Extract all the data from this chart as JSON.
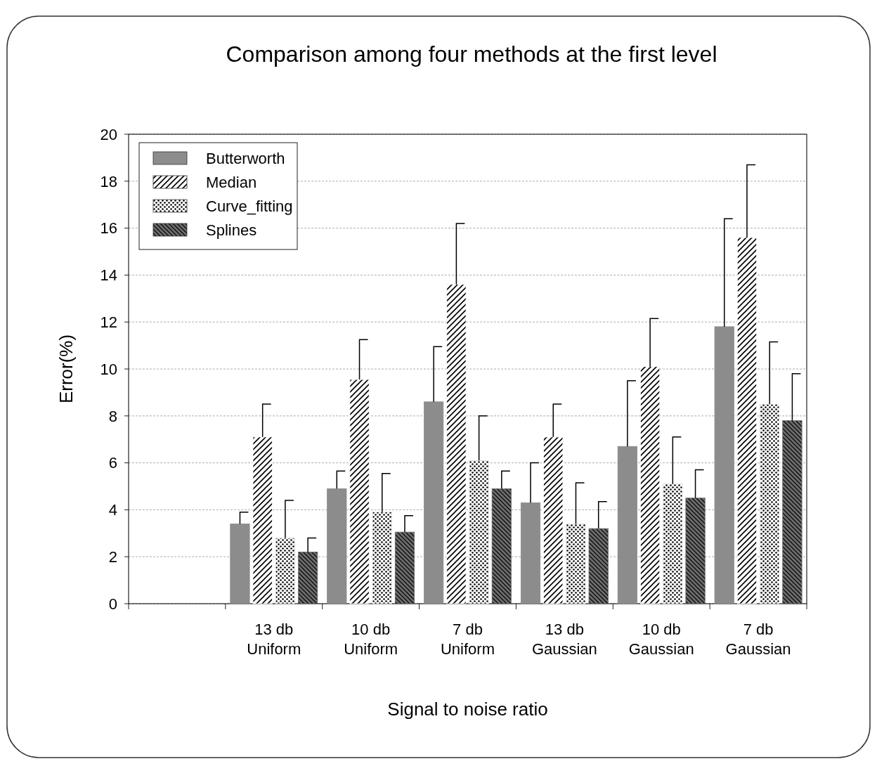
{
  "chart_data": {
    "type": "bar",
    "title": "Comparison among four methods at the first level",
    "xlabel": "Signal to noise ratio",
    "ylabel": "Error(%)",
    "categories": [
      null,
      "13 db Uniform",
      "10 db Uniform",
      "7 db Uniform",
      "13 db Gaussian",
      "10 db Gaussian",
      "7 db Gaussian"
    ],
    "series": [
      {
        "name": "Butterworth",
        "color": "#8c8c8c",
        "values": [
          null,
          3.4,
          4.9,
          8.6,
          4.3,
          6.7,
          11.8
        ],
        "errors": [
          null,
          [
            3.4,
            3.9
          ],
          [
            4.9,
            5.65
          ],
          [
            8.6,
            10.95
          ],
          [
            4.3,
            6.0
          ],
          [
            6.7,
            9.5
          ],
          [
            11.8,
            16.4
          ]
        ]
      },
      {
        "name": "Median",
        "color": "#ffffff",
        "values": [
          null,
          7.1,
          9.55,
          13.6,
          7.1,
          10.1,
          15.6
        ],
        "errors": [
          null,
          [
            7.1,
            8.5
          ],
          [
            9.55,
            11.25
          ],
          [
            13.6,
            16.2
          ],
          [
            7.1,
            8.5
          ],
          [
            10.1,
            12.15
          ],
          [
            15.6,
            18.7
          ]
        ]
      },
      {
        "name": "Curve_fitting",
        "color": "#e0e0e0",
        "values": [
          null,
          2.8,
          3.9,
          6.1,
          3.4,
          5.1,
          8.5
        ],
        "errors": [
          null,
          [
            2.8,
            4.4
          ],
          [
            3.9,
            5.55
          ],
          [
            6.1,
            8.0
          ],
          [
            3.4,
            5.15
          ],
          [
            5.1,
            7.1
          ],
          [
            8.5,
            11.15
          ]
        ]
      },
      {
        "name": "Splines",
        "color": "#6e6e6e",
        "values": [
          null,
          2.2,
          3.05,
          4.9,
          3.2,
          4.5,
          7.8
        ],
        "errors": [
          null,
          [
            2.2,
            2.8
          ],
          [
            3.05,
            3.75
          ],
          [
            4.9,
            5.65
          ],
          [
            3.2,
            4.35
          ],
          [
            4.5,
            5.7
          ],
          [
            7.8,
            9.8
          ]
        ]
      }
    ],
    "ylim": [
      0,
      20
    ],
    "yticks": [
      0,
      2,
      4,
      6,
      8,
      10,
      12,
      14,
      16,
      18,
      20
    ],
    "grid": "y",
    "legend": "top left"
  }
}
